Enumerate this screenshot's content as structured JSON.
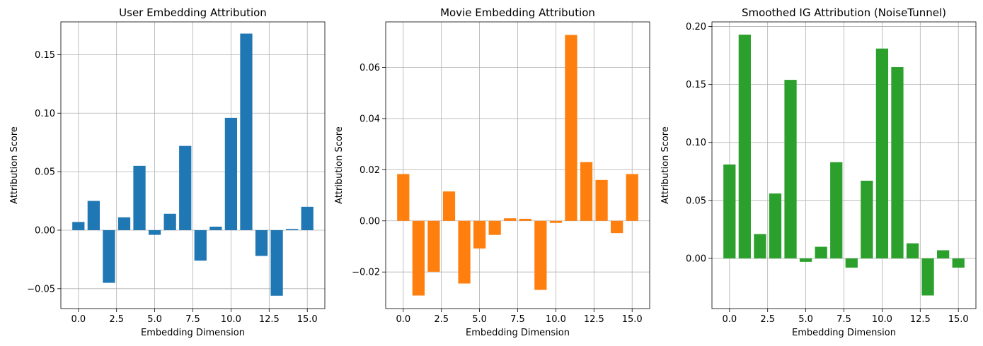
{
  "chart_data": [
    {
      "type": "bar",
      "title": "User Embedding Attribution",
      "xlabel": "Embedding Dimension",
      "ylabel": "Attribution Score",
      "color": "#1f77b4",
      "grid": true,
      "x": [
        0,
        1,
        2,
        3,
        4,
        5,
        6,
        7,
        8,
        9,
        10,
        11,
        12,
        13,
        14,
        15
      ],
      "values": [
        0.007,
        0.025,
        -0.045,
        0.011,
        0.055,
        -0.004,
        0.014,
        0.072,
        -0.026,
        0.003,
        0.096,
        0.168,
        -0.022,
        -0.056,
        0.001,
        0.02
      ],
      "xlim": [
        -1.15,
        16.15
      ],
      "ylim": [
        -0.067,
        0.178
      ],
      "xticks": [
        0.0,
        2.5,
        5.0,
        7.5,
        10.0,
        12.5,
        15.0
      ],
      "xtick_labels": [
        "0.0",
        "2.5",
        "5.0",
        "7.5",
        "10.0",
        "12.5",
        "15.0"
      ],
      "yticks": [
        -0.05,
        0.0,
        0.05,
        0.1,
        0.15
      ],
      "ytick_labels": [
        "−0.05",
        "0.00",
        "0.05",
        "0.10",
        "0.15"
      ]
    },
    {
      "type": "bar",
      "title": "Movie Embedding Attribution",
      "xlabel": "Embedding Dimension",
      "ylabel": "Attribution Score",
      "color": "#ff7f0e",
      "grid": true,
      "x": [
        0,
        1,
        2,
        3,
        4,
        5,
        6,
        7,
        8,
        9,
        10,
        11,
        12,
        13,
        14,
        15
      ],
      "values": [
        0.0183,
        -0.0292,
        -0.0199,
        0.0115,
        -0.0245,
        -0.0108,
        -0.0055,
        0.001,
        0.0008,
        -0.027,
        -0.0008,
        0.0727,
        0.023,
        0.016,
        -0.0048,
        0.0183
      ],
      "xlim": [
        -1.15,
        16.15
      ],
      "ylim": [
        -0.0343,
        0.0778
      ],
      "xticks": [
        0.0,
        2.5,
        5.0,
        7.5,
        10.0,
        12.5,
        15.0
      ],
      "xtick_labels": [
        "0.0",
        "2.5",
        "5.0",
        "7.5",
        "10.0",
        "12.5",
        "15.0"
      ],
      "yticks": [
        -0.02,
        0.0,
        0.02,
        0.04,
        0.06
      ],
      "ytick_labels": [
        "−0.02",
        "0.00",
        "0.02",
        "0.04",
        "0.06"
      ]
    },
    {
      "type": "bar",
      "title": "Smoothed IG Attribution (NoiseTunnel)",
      "xlabel": "Embedding Dimension",
      "ylabel": "Attribution Score",
      "color": "#2ca02c",
      "grid": true,
      "x": [
        0,
        1,
        2,
        3,
        4,
        5,
        6,
        7,
        8,
        9,
        10,
        11,
        12,
        13,
        14,
        15
      ],
      "values": [
        0.081,
        0.193,
        0.021,
        0.056,
        0.154,
        -0.003,
        0.01,
        0.083,
        -0.008,
        0.067,
        0.181,
        0.165,
        0.013,
        -0.032,
        0.007,
        -0.008
      ],
      "xlim": [
        -1.15,
        16.15
      ],
      "ylim": [
        -0.0433,
        0.204
      ],
      "xticks": [
        0.0,
        2.5,
        5.0,
        7.5,
        10.0,
        12.5,
        15.0
      ],
      "xtick_labels": [
        "0.0",
        "2.5",
        "5.0",
        "7.5",
        "10.0",
        "12.5",
        "15.0"
      ],
      "yticks": [
        0.0,
        0.05,
        0.1,
        0.15,
        0.2
      ],
      "ytick_labels": [
        "0.00",
        "0.05",
        "0.10",
        "0.15",
        "0.20"
      ]
    }
  ]
}
